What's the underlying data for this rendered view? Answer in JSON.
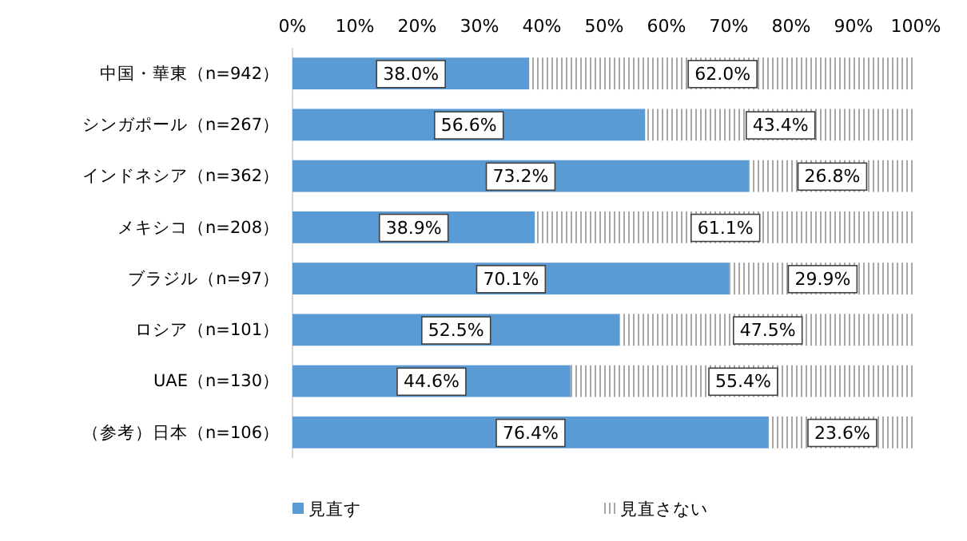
{
  "chart_data": {
    "type": "bar",
    "orientation": "horizontal",
    "stacked": true,
    "categories": [
      "中国・華東（n=942）",
      "シンガポール（n=267）",
      "インドネシア（n=362）",
      "メキシコ（n=208）",
      "ブラジル（n=97）",
      "ロシア（n=101）",
      "UAE（n=130）",
      "（参考）日本（n=106）"
    ],
    "series": [
      {
        "name": "見直す",
        "color": "#5b9bd5",
        "values": [
          38.0,
          56.6,
          73.2,
          38.9,
          70.1,
          52.5,
          44.6,
          76.4
        ],
        "value_labels": [
          "38.0%",
          "56.6%",
          "73.2%",
          "38.9%",
          "70.1%",
          "52.5%",
          "44.6%",
          "76.4%"
        ]
      },
      {
        "name": "見直さない",
        "color": "#a6a6a6",
        "values": [
          62.0,
          43.4,
          26.8,
          61.1,
          29.9,
          47.5,
          55.4,
          23.6
        ],
        "value_labels": [
          "62.0%",
          "43.4%",
          "26.8%",
          "61.1%",
          "29.9%",
          "47.5%",
          "55.4%",
          "23.6%"
        ]
      }
    ],
    "xlim": [
      0,
      100
    ],
    "xticks": [
      {
        "value": 0,
        "label": "0%"
      },
      {
        "value": 10,
        "label": "10%"
      },
      {
        "value": 20,
        "label": "20%"
      },
      {
        "value": 30,
        "label": "30%"
      },
      {
        "value": 40,
        "label": "40%"
      },
      {
        "value": 50,
        "label": "50%"
      },
      {
        "value": 60,
        "label": "60%"
      },
      {
        "value": 70,
        "label": "70%"
      },
      {
        "value": 80,
        "label": "80%"
      },
      {
        "value": 90,
        "label": "90%"
      },
      {
        "value": 100,
        "label": "100%"
      }
    ],
    "legend": "bottom"
  }
}
